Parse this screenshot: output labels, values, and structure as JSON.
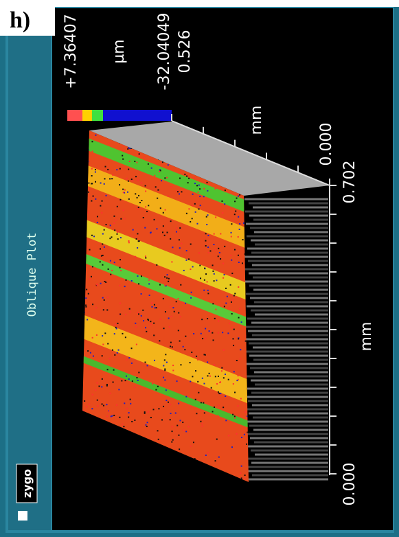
{
  "header": {
    "label": "h)"
  },
  "window": {
    "title": "Oblique Plot",
    "logo": "zygo"
  },
  "scale": {
    "max": "+7.36407",
    "unit": "µm",
    "min": "-32.04049",
    "extra": "0.526"
  },
  "axes": {
    "depth_unit": "mm",
    "depth_label": "0.000",
    "x_end": "0.702",
    "x_unit": "mm",
    "x_start": "0.000"
  }
}
